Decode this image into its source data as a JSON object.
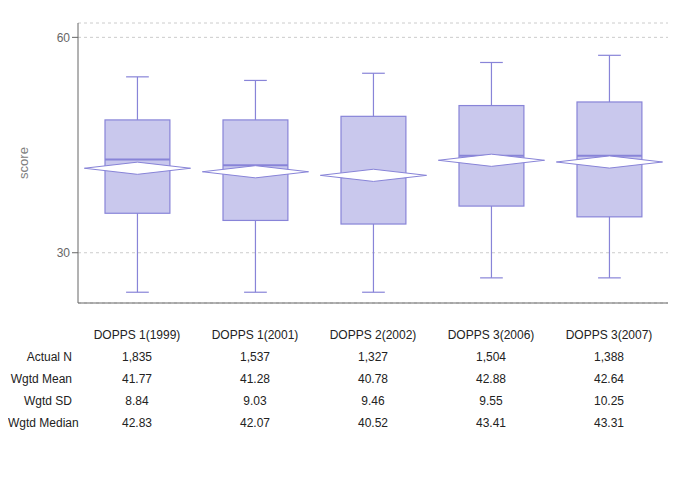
{
  "chart_data": {
    "type": "box",
    "ylabel": "score",
    "categories": [
      "DOPPS 1(1999)",
      "DOPPS 1(2001)",
      "DOPPS 2(2002)",
      "DOPPS 3(2006)",
      "DOPPS 3(2007)"
    ],
    "whisker_low": [
      24.5,
      24.5,
      24.5,
      26.5,
      26.5
    ],
    "q1": [
      35.5,
      34.5,
      34.0,
      36.5,
      35.0
    ],
    "median": [
      43.0,
      42.2,
      40.5,
      43.5,
      43.5
    ],
    "q3": [
      48.5,
      48.5,
      49.0,
      50.5,
      51.0
    ],
    "whisker_high": [
      54.5,
      54.0,
      55.0,
      56.5,
      57.5
    ],
    "mean": [
      41.77,
      41.28,
      40.78,
      42.88,
      42.64
    ],
    "color": "#8884d8",
    "ylim": [
      23,
      62
    ],
    "yticks": [
      30,
      60
    ],
    "grid": true,
    "tick_labels": "y",
    "table": {
      "rows": [
        {
          "label": "Actual N",
          "values": [
            "1,835",
            "1,537",
            "1,327",
            "1,504",
            "1,388"
          ]
        },
        {
          "label": "Wgtd Mean",
          "values": [
            "41.77",
            "41.28",
            "40.78",
            "42.88",
            "42.64"
          ]
        },
        {
          "label": "Wgtd SD",
          "values": [
            "8.84",
            "9.03",
            "9.46",
            "9.55",
            "10.25"
          ]
        },
        {
          "label": "Wgtd Median",
          "values": [
            "42.83",
            "42.07",
            "40.52",
            "43.41",
            "43.31"
          ]
        }
      ]
    }
  }
}
